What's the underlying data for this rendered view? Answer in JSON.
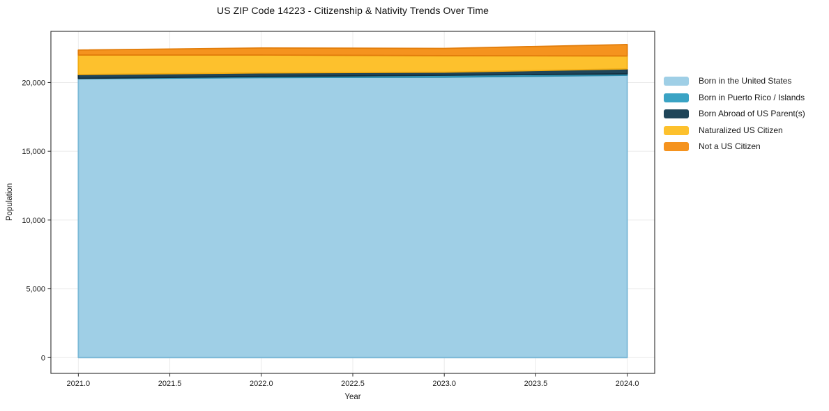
{
  "chart_data": {
    "type": "area",
    "stacked": true,
    "title": "US ZIP Code 14223 - Citizenship & Nativity Trends Over Time",
    "xlabel": "Year",
    "ylabel": "Population",
    "x": [
      2021,
      2022,
      2023,
      2024
    ],
    "series": [
      {
        "name": "Born in the United States",
        "color": "#9fcfe6",
        "edge": "#7ab8d6",
        "values": [
          20280,
          20360,
          20390,
          20530
        ]
      },
      {
        "name": "Born in Puerto Rico / Islands",
        "color": "#3aa3c4",
        "edge": "#2b8aa9",
        "values": [
          20,
          80,
          140,
          100
        ]
      },
      {
        "name": "Born Abroad of US Parent(s)",
        "color": "#1f4559",
        "edge": "#132f3f",
        "values": [
          280,
          260,
          220,
          360
        ]
      },
      {
        "name": "Naturalized US Citizen",
        "color": "#fdc12d",
        "edge": "#f2ac12",
        "values": [
          1420,
          1300,
          1200,
          940
        ]
      },
      {
        "name": "Not a US Citizen",
        "color": "#f5931e",
        "edge": "#e27d0b",
        "values": [
          360,
          510,
          530,
          830
        ]
      }
    ],
    "x_ticks": [
      2021.0,
      2021.5,
      2022.0,
      2022.5,
      2023.0,
      2023.5,
      2024.0
    ],
    "x_tick_labels": [
      "2021.0",
      "2021.5",
      "2022.0",
      "2022.5",
      "2023.0",
      "2023.5",
      "2024.0"
    ],
    "y_ticks": [
      0,
      5000,
      10000,
      15000,
      20000
    ],
    "y_tick_labels": [
      "0",
      "5,000",
      "10,000",
      "15,000",
      "20,000"
    ],
    "xlim": [
      2020.85,
      2024.15
    ],
    "ylim": [
      -1150,
      23720
    ],
    "grid": true,
    "grid_color": "#ebebeb",
    "axis_color": "#2a2a2a",
    "tick_label_color": "#1a1a1a",
    "legend_position": "right"
  }
}
